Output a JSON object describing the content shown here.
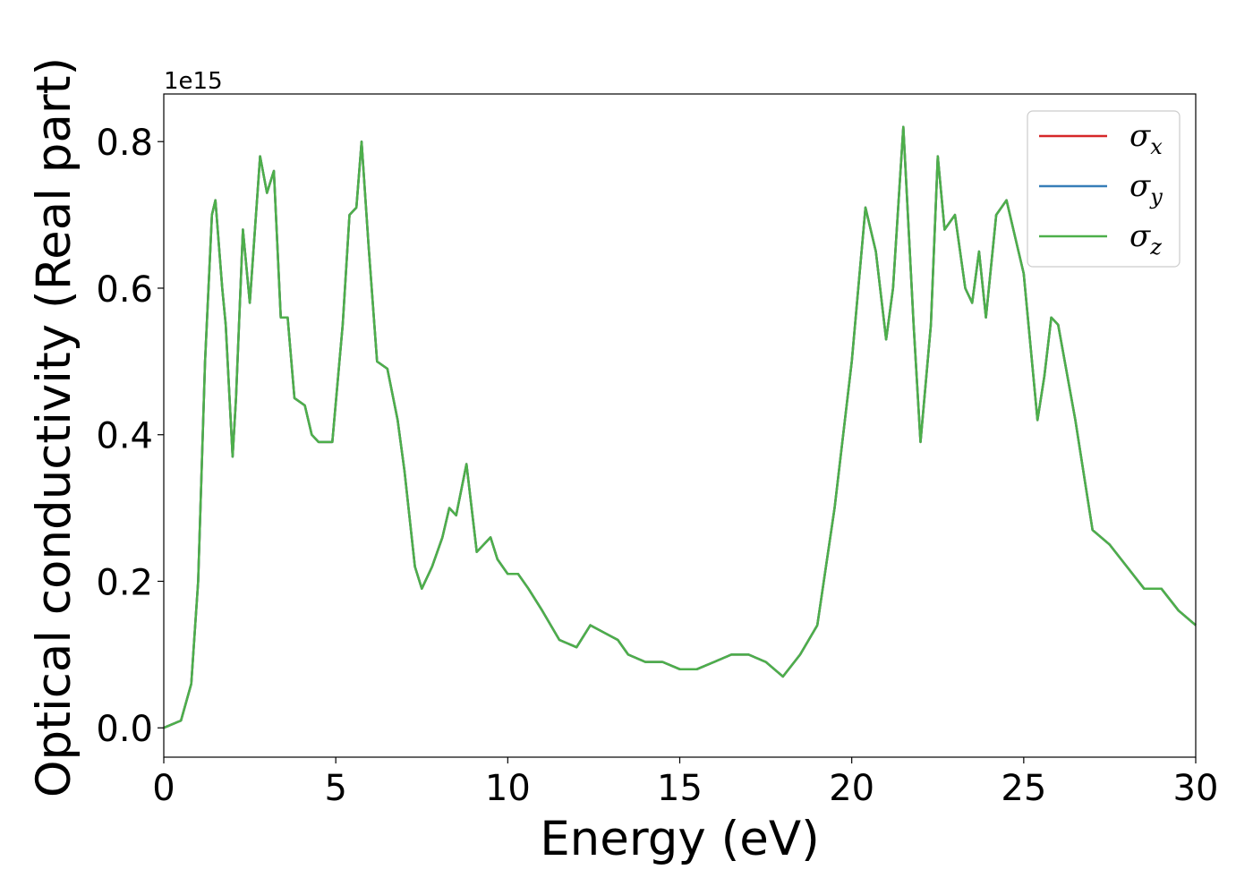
{
  "chart_data": {
    "type": "line",
    "title": "",
    "xlabel": "Energy (eV)",
    "ylabel": "Optical conductivity (Real part)",
    "y_offset_label": "1e15",
    "xlim": [
      0,
      30
    ],
    "ylim": [
      -0.04,
      0.865
    ],
    "y_scale_note": "values shown in units of 1e15",
    "grid": false,
    "legend_position": "top-right",
    "xticks": [
      0,
      5,
      10,
      15,
      20,
      25,
      30
    ],
    "xtick_labels": [
      "0",
      "5",
      "10",
      "15",
      "20",
      "25",
      "30"
    ],
    "yticks": [
      0.0,
      0.2,
      0.4,
      0.6,
      0.8
    ],
    "ytick_labels": [
      "0.0",
      "0.2",
      "0.4",
      "0.6",
      "0.8"
    ],
    "x": [
      0,
      0.5,
      0.8,
      1.0,
      1.2,
      1.4,
      1.5,
      1.7,
      1.8,
      2.0,
      2.1,
      2.3,
      2.5,
      2.8,
      3.0,
      3.2,
      3.4,
      3.6,
      3.8,
      4.1,
      4.3,
      4.5,
      4.9,
      5.2,
      5.4,
      5.6,
      5.75,
      5.95,
      6.2,
      6.5,
      6.8,
      7.0,
      7.3,
      7.5,
      7.8,
      8.1,
      8.3,
      8.5,
      8.8,
      9.1,
      9.5,
      9.7,
      10.0,
      10.3,
      10.6,
      11.0,
      11.5,
      12.0,
      12.4,
      12.8,
      13.2,
      13.5,
      14.0,
      14.5,
      15.0,
      15.5,
      16.0,
      16.5,
      17.0,
      17.5,
      18.0,
      18.5,
      19.0,
      19.5,
      20.0,
      20.4,
      20.7,
      21.0,
      21.2,
      21.5,
      21.8,
      22.0,
      22.3,
      22.5,
      22.7,
      23.0,
      23.3,
      23.5,
      23.7,
      23.9,
      24.2,
      24.5,
      24.8,
      25.0,
      25.4,
      25.6,
      25.8,
      26.0,
      26.5,
      27.0,
      27.5,
      28.0,
      28.5,
      29.0,
      29.5,
      30.0
    ],
    "series": [
      {
        "name": "σ_x",
        "color": "#d62728",
        "values": [
          0,
          0.01,
          0.06,
          0.2,
          0.5,
          0.7,
          0.72,
          0.6,
          0.55,
          0.37,
          0.45,
          0.68,
          0.58,
          0.78,
          0.73,
          0.76,
          0.56,
          0.56,
          0.45,
          0.44,
          0.4,
          0.39,
          0.39,
          0.55,
          0.7,
          0.71,
          0.8,
          0.66,
          0.5,
          0.49,
          0.42,
          0.35,
          0.22,
          0.19,
          0.22,
          0.26,
          0.3,
          0.29,
          0.36,
          0.24,
          0.26,
          0.23,
          0.21,
          0.21,
          0.19,
          0.16,
          0.12,
          0.11,
          0.14,
          0.13,
          0.12,
          0.1,
          0.09,
          0.09,
          0.08,
          0.08,
          0.09,
          0.1,
          0.1,
          0.09,
          0.07,
          0.1,
          0.14,
          0.3,
          0.5,
          0.71,
          0.65,
          0.53,
          0.6,
          0.82,
          0.55,
          0.39,
          0.55,
          0.78,
          0.68,
          0.7,
          0.6,
          0.58,
          0.65,
          0.56,
          0.7,
          0.72,
          0.66,
          0.62,
          0.42,
          0.48,
          0.56,
          0.55,
          0.42,
          0.27,
          0.25,
          0.22,
          0.19,
          0.19,
          0.16,
          0.14
        ]
      },
      {
        "name": "σ_y",
        "color": "#377eb8",
        "values": [
          0,
          0.01,
          0.06,
          0.2,
          0.5,
          0.7,
          0.72,
          0.6,
          0.55,
          0.37,
          0.45,
          0.68,
          0.58,
          0.78,
          0.73,
          0.76,
          0.56,
          0.56,
          0.45,
          0.44,
          0.4,
          0.39,
          0.39,
          0.55,
          0.7,
          0.71,
          0.8,
          0.66,
          0.5,
          0.49,
          0.42,
          0.35,
          0.22,
          0.19,
          0.22,
          0.26,
          0.3,
          0.29,
          0.36,
          0.24,
          0.26,
          0.23,
          0.21,
          0.21,
          0.19,
          0.16,
          0.12,
          0.11,
          0.14,
          0.13,
          0.12,
          0.1,
          0.09,
          0.09,
          0.08,
          0.08,
          0.09,
          0.1,
          0.1,
          0.09,
          0.07,
          0.1,
          0.14,
          0.3,
          0.5,
          0.71,
          0.65,
          0.53,
          0.6,
          0.82,
          0.55,
          0.39,
          0.55,
          0.78,
          0.68,
          0.7,
          0.6,
          0.58,
          0.65,
          0.56,
          0.7,
          0.72,
          0.66,
          0.62,
          0.42,
          0.48,
          0.56,
          0.55,
          0.42,
          0.27,
          0.25,
          0.22,
          0.19,
          0.19,
          0.16,
          0.14
        ]
      },
      {
        "name": "σ_z",
        "color": "#4daf4a",
        "values": [
          0,
          0.01,
          0.06,
          0.2,
          0.5,
          0.7,
          0.72,
          0.6,
          0.55,
          0.37,
          0.45,
          0.68,
          0.58,
          0.78,
          0.73,
          0.76,
          0.56,
          0.56,
          0.45,
          0.44,
          0.4,
          0.39,
          0.39,
          0.55,
          0.7,
          0.71,
          0.8,
          0.66,
          0.5,
          0.49,
          0.42,
          0.35,
          0.22,
          0.19,
          0.22,
          0.26,
          0.3,
          0.29,
          0.36,
          0.24,
          0.26,
          0.23,
          0.21,
          0.21,
          0.19,
          0.16,
          0.12,
          0.11,
          0.14,
          0.13,
          0.12,
          0.1,
          0.09,
          0.09,
          0.08,
          0.08,
          0.09,
          0.1,
          0.1,
          0.09,
          0.07,
          0.1,
          0.14,
          0.3,
          0.5,
          0.71,
          0.65,
          0.53,
          0.6,
          0.82,
          0.55,
          0.39,
          0.55,
          0.78,
          0.68,
          0.7,
          0.6,
          0.58,
          0.65,
          0.56,
          0.7,
          0.72,
          0.66,
          0.62,
          0.42,
          0.48,
          0.56,
          0.55,
          0.42,
          0.27,
          0.25,
          0.22,
          0.19,
          0.19,
          0.16,
          0.14
        ]
      }
    ],
    "legend": [
      {
        "symbol": "σ",
        "subscript": "x",
        "color": "#d62728"
      },
      {
        "symbol": "σ",
        "subscript": "y",
        "color": "#377eb8"
      },
      {
        "symbol": "σ",
        "subscript": "z",
        "color": "#4daf4a"
      }
    ]
  }
}
